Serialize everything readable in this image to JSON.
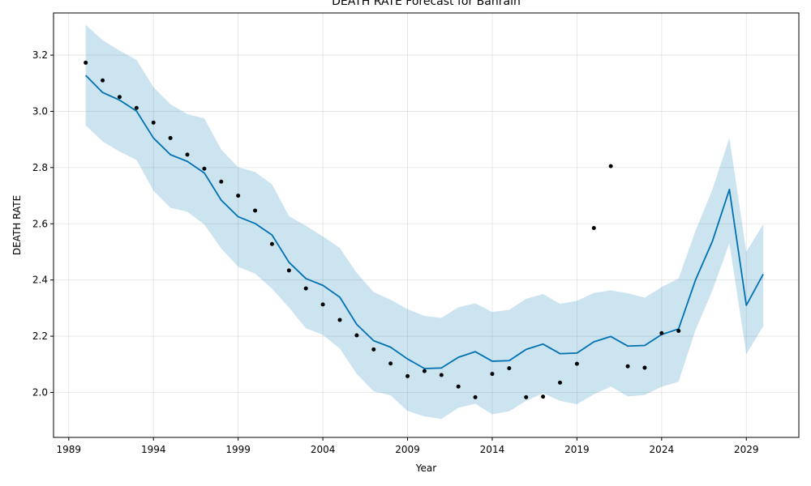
{
  "chart_data": {
    "type": "line",
    "title": "DEATH RATE Forecast for Bahrain",
    "xlabel": "Year",
    "ylabel": "DEATH RATE",
    "xlim": [
      1988.1,
      2032.1
    ],
    "ylim": [
      1.84,
      3.35
    ],
    "grid": true,
    "x_ticks": [
      1989,
      1994,
      1999,
      2004,
      2009,
      2014,
      2019,
      2024,
      2029
    ],
    "y_ticks": [
      2.0,
      2.2,
      2.4,
      2.6,
      2.8,
      3.0,
      3.2
    ],
    "y_tick_labels": [
      "2.0",
      "2.2",
      "2.4",
      "2.6",
      "2.8",
      "3.0",
      "3.2"
    ],
    "colors": {
      "forecast": "#0072B2",
      "band": "#0072B2",
      "actual": "#000000"
    },
    "actual": {
      "x": [
        1990,
        1991,
        1992,
        1993,
        1994,
        1995,
        1996,
        1997,
        1998,
        1999,
        2000,
        2001,
        2002,
        2003,
        2004,
        2005,
        2006,
        2007,
        2008,
        2009,
        2010,
        2011,
        2012,
        2013,
        2014,
        2015,
        2016,
        2017,
        2018,
        2019,
        2020,
        2021,
        2022,
        2023,
        2024,
        2025
      ],
      "y": [
        3.173,
        3.11,
        3.051,
        3.012,
        2.96,
        2.905,
        2.846,
        2.796,
        2.75,
        2.7,
        2.647,
        2.528,
        2.434,
        2.37,
        2.313,
        2.258,
        2.203,
        2.153,
        2.103,
        2.058,
        2.076,
        2.062,
        2.021,
        1.983,
        2.066,
        2.086,
        1.983,
        1.985,
        2.035,
        2.102,
        2.585,
        2.805,
        2.093,
        2.088,
        2.211,
        2.219
      ]
    },
    "forecast": {
      "x": [
        1990,
        1991,
        1992,
        1993,
        1994,
        1995,
        1996,
        1997,
        1998,
        1999,
        2000,
        2001,
        2002,
        2003,
        2004,
        2005,
        2006,
        2007,
        2008,
        2009,
        2010,
        2011,
        2012,
        2013,
        2014,
        2015,
        2016,
        2017,
        2018,
        2019,
        2020,
        2021,
        2022,
        2023,
        2024,
        2025,
        2026,
        2027,
        2028,
        2029,
        2030
      ],
      "yhat": [
        3.128,
        3.067,
        3.04,
        3.001,
        2.905,
        2.846,
        2.822,
        2.781,
        2.684,
        2.625,
        2.601,
        2.56,
        2.463,
        2.405,
        2.381,
        2.339,
        2.242,
        2.184,
        2.161,
        2.119,
        2.085,
        2.087,
        2.125,
        2.145,
        2.111,
        2.113,
        2.153,
        2.172,
        2.138,
        2.14,
        2.18,
        2.199,
        2.165,
        2.167,
        2.206,
        2.226,
        2.4,
        2.538,
        2.722,
        2.31,
        2.421
      ],
      "lower": [
        2.95,
        2.893,
        2.857,
        2.827,
        2.718,
        2.657,
        2.643,
        2.597,
        2.512,
        2.447,
        2.423,
        2.369,
        2.302,
        2.228,
        2.205,
        2.156,
        2.066,
        2.004,
        1.99,
        1.934,
        1.915,
        1.906,
        1.945,
        1.96,
        1.922,
        1.933,
        1.97,
        1.997,
        1.97,
        1.958,
        1.993,
        2.021,
        1.986,
        1.991,
        2.02,
        2.038,
        2.222,
        2.363,
        2.531,
        2.136,
        2.236
      ],
      "upper": [
        3.308,
        3.253,
        3.216,
        3.183,
        3.086,
        3.025,
        2.99,
        2.975,
        2.864,
        2.801,
        2.784,
        2.74,
        2.627,
        2.593,
        2.555,
        2.514,
        2.425,
        2.357,
        2.33,
        2.296,
        2.272,
        2.265,
        2.303,
        2.317,
        2.286,
        2.294,
        2.333,
        2.35,
        2.315,
        2.326,
        2.354,
        2.363,
        2.353,
        2.337,
        2.375,
        2.405,
        2.575,
        2.722,
        2.906,
        2.5,
        2.599
      ]
    }
  }
}
